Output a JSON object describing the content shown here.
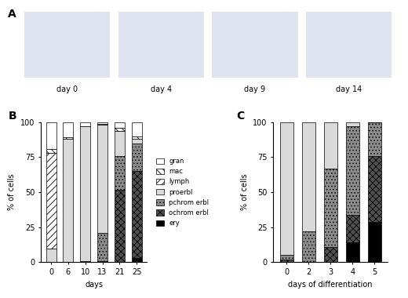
{
  "panel_labels": [
    "A",
    "B",
    "C"
  ],
  "images": [
    "day 0",
    "day 4",
    "day 9",
    "day 14"
  ],
  "chart_data": [
    {
      "type": "bar",
      "stacked": true,
      "xlabel": "days",
      "ylabel": "% of cells",
      "categories": [
        "0",
        "6",
        "10",
        "13",
        "21",
        "25"
      ],
      "ylim": [
        0,
        100
      ],
      "yticks": [
        0,
        25,
        50,
        75,
        100
      ],
      "legend": "right",
      "series": [
        {
          "name": "ery",
          "color": "#000000",
          "values": [
            0,
            0,
            0,
            0,
            0,
            3
          ]
        },
        {
          "name": "ochrom erbl",
          "color": "#505050",
          "values": [
            0,
            0,
            1,
            1,
            52,
            62
          ]
        },
        {
          "name": "pchrom erbl",
          "color": "#8c8c8c",
          "values": [
            0,
            0,
            0,
            20,
            24,
            20
          ]
        },
        {
          "name": "proerbl",
          "color": "#d9d9d9",
          "values": [
            10,
            88,
            96,
            77,
            18,
            3
          ]
        },
        {
          "name": "lymph",
          "color": "#ffffff",
          "values": [
            68,
            0,
            0,
            0,
            0,
            0
          ]
        },
        {
          "name": "mac",
          "color": "#ffffff",
          "values": [
            3,
            1,
            0,
            1,
            2,
            2
          ]
        },
        {
          "name": "gran",
          "color": "#ffffff",
          "values": [
            19,
            11,
            3,
            1,
            4,
            10
          ]
        }
      ]
    },
    {
      "type": "bar",
      "stacked": true,
      "xlabel": "days of differentiation",
      "ylabel": "% of cells",
      "categories": [
        "0",
        "2",
        "3",
        "4",
        "5"
      ],
      "ylim": [
        0,
        100
      ],
      "yticks": [
        0,
        25,
        50,
        75,
        100
      ],
      "series": [
        {
          "name": "ery",
          "color": "#000000",
          "values": [
            0,
            0,
            0,
            14,
            29
          ]
        },
        {
          "name": "ochrom erbl",
          "color": "#505050",
          "values": [
            2,
            0,
            11,
            20,
            47
          ]
        },
        {
          "name": "pchrom erbl",
          "color": "#8c8c8c",
          "values": [
            3,
            22,
            56,
            63,
            24
          ]
        },
        {
          "name": "proerbl",
          "color": "#d9d9d9",
          "values": [
            95,
            78,
            33,
            3,
            0
          ]
        }
      ]
    }
  ]
}
